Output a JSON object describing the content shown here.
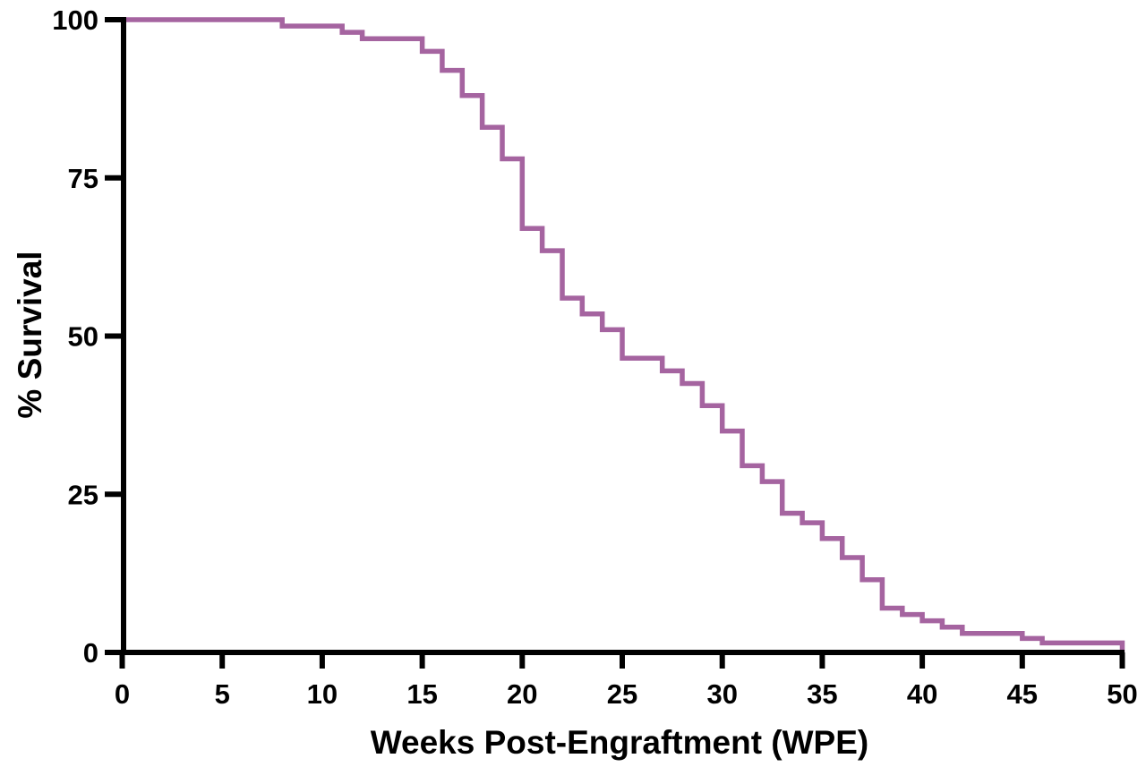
{
  "figure": {
    "background_color": "#ffffff"
  },
  "chart_data": {
    "type": "line",
    "subtype": "kaplan-meier-step",
    "title": "",
    "xlabel": "Weeks Post-Engraftment  (WPE)",
    "ylabel": "% Survival",
    "xlim": [
      0,
      50
    ],
    "ylim": [
      0,
      100
    ],
    "x_ticks": [
      0,
      5,
      10,
      15,
      20,
      25,
      30,
      35,
      40,
      45,
      50
    ],
    "y_ticks": [
      0,
      25,
      50,
      75,
      100
    ],
    "grid": false,
    "legend_position": "none",
    "line_color": "#a564a0",
    "axis_color": "#000000",
    "series": [
      {
        "name": "% Survival",
        "step_mode": "post",
        "points": [
          [
            0,
            100
          ],
          [
            8,
            99
          ],
          [
            11,
            98
          ],
          [
            12,
            97
          ],
          [
            15,
            95
          ],
          [
            16,
            92
          ],
          [
            17,
            88
          ],
          [
            18,
            83
          ],
          [
            19,
            78
          ],
          [
            20,
            67
          ],
          [
            21,
            63.5
          ],
          [
            22,
            56
          ],
          [
            23,
            53.5
          ],
          [
            24,
            51
          ],
          [
            25,
            46.5
          ],
          [
            27,
            44.5
          ],
          [
            28,
            42.5
          ],
          [
            29,
            39
          ],
          [
            30,
            35
          ],
          [
            31,
            29.5
          ],
          [
            32,
            27
          ],
          [
            33,
            22
          ],
          [
            34,
            20.5
          ],
          [
            35,
            18
          ],
          [
            36,
            15
          ],
          [
            37,
            11.5
          ],
          [
            38,
            7
          ],
          [
            39,
            6
          ],
          [
            40,
            5
          ],
          [
            41,
            4
          ],
          [
            42,
            3
          ],
          [
            45,
            2.2
          ],
          [
            46,
            1.5
          ],
          [
            50,
            0
          ]
        ]
      }
    ]
  }
}
